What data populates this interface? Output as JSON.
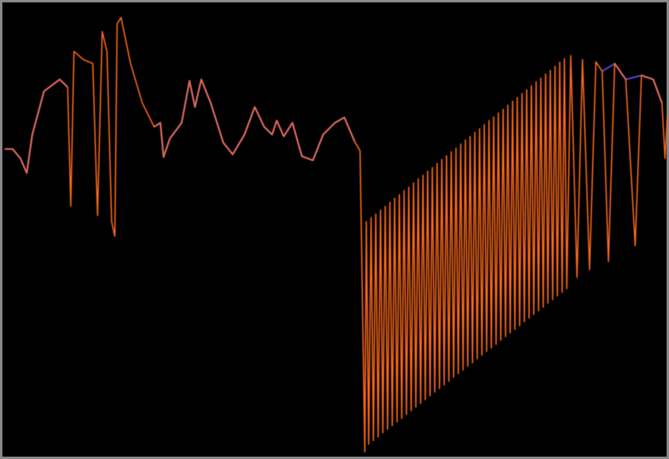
{
  "chart_data": {
    "type": "line",
    "xlim": [
      0,
      843
    ],
    "ylim": [
      0,
      100
    ],
    "background": "#000000",
    "series": [
      {
        "color": "#5a4ad8",
        "x": [
          0,
          10,
          20,
          28,
          35,
          50,
          70,
          80,
          82,
          190,
          198,
          202,
          210,
          225,
          235,
          242,
          250,
          262,
          278,
          290,
          305,
          318,
          330,
          340,
          346,
          355,
          366,
          378,
          392,
          405,
          420,
          432,
          445,
          450,
          760,
          776,
          790,
          810,
          825,
          836
        ],
        "values": [
          67.9,
          67.9,
          65.8,
          62.6,
          71.1,
          80.7,
          83.3,
          81.6,
          null,
          72.8,
          73.7,
          66.1,
          70.2,
          73.7,
          83.0,
          77.2,
          83.3,
          78.1,
          69.3,
          66.7,
          71.1,
          77.2,
          72.8,
          71.1,
          74.2,
          70.7,
          73.7,
          66.3,
          65.4,
          71.1,
          73.7,
          74.9,
          69.6,
          null,
          85.1,
          86.8,
          83.3,
          84.2,
          83.3,
          78.1
        ]
      },
      {
        "color": "#ff6a1a",
        "x": [
          0,
          10,
          20,
          28,
          35,
          50,
          70,
          80,
          84,
          88,
          100,
          112,
          118,
          124,
          130,
          136,
          140,
          143,
          148,
          160,
          175,
          190,
          198,
          202,
          210,
          225,
          235,
          242,
          250,
          262,
          278,
          290,
          305,
          318,
          330,
          340,
          346,
          355,
          366,
          378,
          392,
          405,
          420,
          432,
          445,
          452,
          458,
          460,
          463,
          466,
          469,
          472,
          475,
          478,
          481,
          484,
          487,
          490,
          493,
          496,
          499,
          502,
          505,
          508,
          511,
          514,
          517,
          520,
          523,
          526,
          529,
          532,
          535,
          538,
          541,
          544,
          547,
          550,
          553,
          556,
          559,
          562,
          565,
          568,
          571,
          574,
          577,
          580,
          583,
          586,
          589,
          592,
          595,
          598,
          601,
          604,
          607,
          610,
          613,
          616,
          619,
          622,
          625,
          628,
          631,
          634,
          637,
          640,
          643,
          646,
          649,
          652,
          655,
          658,
          661,
          664,
          667,
          670,
          673,
          676,
          679,
          682,
          685,
          688,
          691,
          694,
          697,
          700,
          703,
          706,
          709,
          712,
          715,
          720,
          728,
          735,
          744,
          752,
          760,
          768,
          776,
          790,
          802,
          810,
          825,
          836,
          840,
          843
        ],
        "values": [
          67.9,
          67.9,
          65.8,
          62.6,
          71.1,
          80.7,
          83.3,
          81.6,
          55.3,
          89.5,
          87.7,
          86.8,
          53.2,
          93.9,
          89.5,
          51.8,
          48.6,
          95.6,
          97.0,
          86.8,
          78.1,
          72.8,
          73.7,
          66.1,
          70.2,
          73.7,
          83.0,
          77.2,
          83.3,
          78.1,
          69.3,
          66.7,
          71.1,
          77.2,
          72.8,
          71.1,
          74.2,
          70.7,
          73.7,
          66.3,
          65.4,
          71.1,
          73.7,
          74.9,
          69.6,
          67.5,
          0.9,
          51.8,
          2.6,
          52.7,
          3.4,
          53.5,
          4.2,
          54.4,
          5.1,
          55.2,
          5.9,
          56.1,
          6.7,
          57.0,
          7.5,
          57.8,
          8.3,
          58.7,
          9.2,
          59.5,
          10.0,
          60.4,
          10.8,
          61.3,
          11.6,
          62.1,
          12.4,
          63.0,
          13.3,
          63.8,
          14.1,
          64.7,
          14.9,
          65.6,
          15.7,
          66.4,
          16.5,
          67.3,
          17.4,
          68.1,
          18.2,
          69.0,
          19.0,
          69.9,
          19.8,
          70.7,
          20.6,
          71.6,
          21.5,
          72.4,
          22.3,
          73.3,
          23.1,
          74.2,
          23.9,
          75.0,
          24.7,
          75.9,
          25.6,
          76.7,
          26.4,
          77.6,
          27.2,
          78.5,
          28.0,
          79.3,
          28.8,
          80.2,
          29.7,
          81.0,
          30.5,
          81.9,
          31.3,
          82.8,
          32.1,
          83.6,
          32.9,
          84.5,
          33.8,
          85.3,
          34.6,
          86.2,
          35.4,
          87.1,
          36.2,
          87.9,
          37.0,
          88.6,
          39.5,
          87.7,
          41.2,
          87.2,
          85.1,
          43.0,
          86.8,
          83.3,
          46.5,
          84.2,
          83.3,
          78.1,
          65.8,
          75.4
        ]
      }
    ]
  }
}
